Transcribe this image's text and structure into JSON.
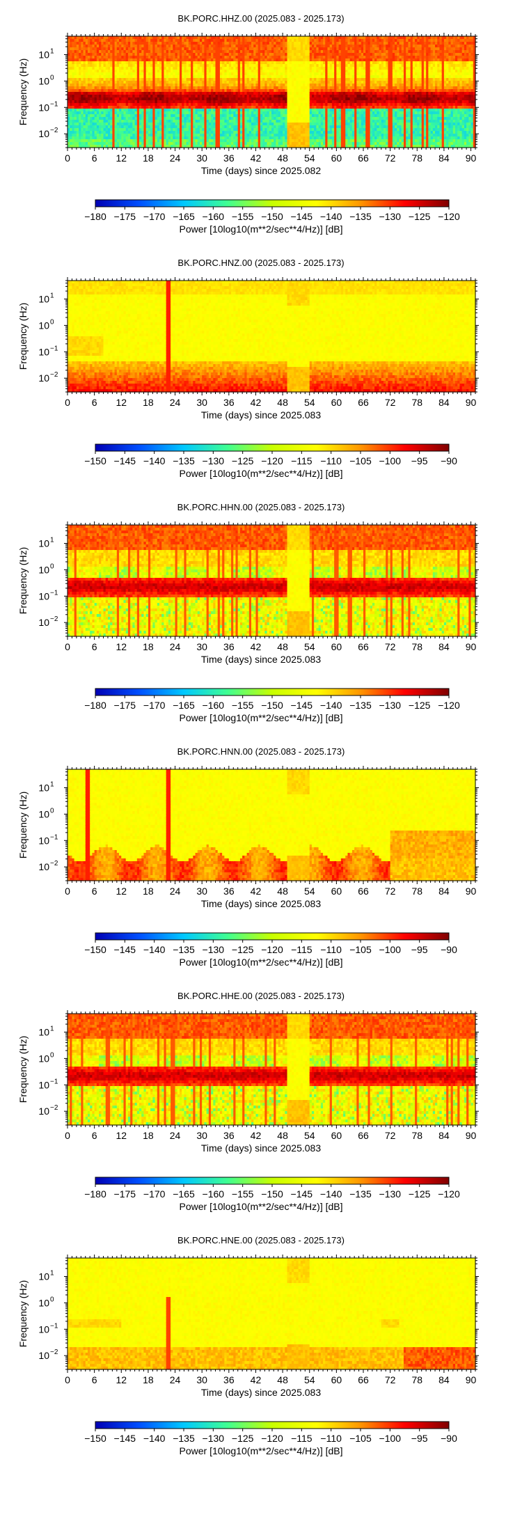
{
  "panels": [
    {
      "title": "BK.PORC.HHZ.00 (2025.083 - 2025.173)",
      "xlabel": "Time (days) since 2025.082",
      "cbar_ticks": [
        "−180",
        "−175",
        "−170",
        "−165",
        "−160",
        "−155",
        "−150",
        "−145",
        "−140",
        "−135",
        "−130",
        "−125",
        "−120"
      ],
      "style": "hh_vertical",
      "dead_band_days": [
        49,
        54
      ]
    },
    {
      "title": "BK.PORC.HNZ.00 (2025.083 - 2025.173)",
      "xlabel": "Time (days) since 2025.083",
      "cbar_ticks": [
        "−150",
        "−145",
        "−140",
        "−135",
        "−130",
        "−125",
        "−120",
        "−115",
        "−110",
        "−105",
        "−100",
        "−95",
        "−90"
      ],
      "style": "hn_vertical",
      "dead_band_days": [
        49,
        54
      ]
    },
    {
      "title": "BK.PORC.HHN.00 (2025.083 - 2025.173)",
      "xlabel": "Time (days) since 2025.083",
      "cbar_ticks": [
        "−180",
        "−175",
        "−170",
        "−165",
        "−160",
        "−155",
        "−150",
        "−145",
        "−140",
        "−135",
        "−130",
        "−125",
        "−120"
      ],
      "style": "hh_horizontal",
      "dead_band_days": [
        49,
        54
      ]
    },
    {
      "title": "BK.PORC.HNN.00 (2025.083 - 2025.173)",
      "xlabel": "Time (days) since 2025.083",
      "cbar_ticks": [
        "−150",
        "−145",
        "−140",
        "−135",
        "−130",
        "−125",
        "−120",
        "−115",
        "−110",
        "−105",
        "−100",
        "−95",
        "−90"
      ],
      "style": "hn_horizontal",
      "dead_band_days": [
        49,
        54
      ]
    },
    {
      "title": "BK.PORC.HHE.00 (2025.083 - 2025.173)",
      "xlabel": "Time (days) since 2025.083",
      "cbar_ticks": [
        "−180",
        "−175",
        "−170",
        "−165",
        "−160",
        "−155",
        "−150",
        "−145",
        "−140",
        "−135",
        "−130",
        "−125",
        "−120"
      ],
      "style": "hh_horizontal",
      "dead_band_days": [
        49,
        54
      ]
    },
    {
      "title": "BK.PORC.HNE.00 (2025.083 - 2025.173)",
      "xlabel": "Time (days) since 2025.083",
      "cbar_ticks": [
        "−150",
        "−145",
        "−140",
        "−135",
        "−130",
        "−125",
        "−120",
        "−115",
        "−110",
        "−105",
        "−100",
        "−95",
        "−90"
      ],
      "style": "hn_east",
      "dead_band_days": [
        49,
        54
      ]
    }
  ],
  "ylabel": "Frequency (Hz)",
  "ytick_labels": [
    {
      "base": "10",
      "exp": "1",
      "freq": 10
    },
    {
      "base": "10",
      "exp": "0",
      "freq": 1
    },
    {
      "base": "10",
      "exp": "−1",
      "freq": 0.1
    },
    {
      "base": "10",
      "exp": "−2",
      "freq": 0.01
    }
  ],
  "xticks": [
    "0",
    "6",
    "12",
    "18",
    "24",
    "30",
    "36",
    "42",
    "48",
    "54",
    "60",
    "66",
    "72",
    "78",
    "84",
    "90"
  ],
  "cbar_label": "Power [10log10(m**2/sec**4/Hz)] [dB]",
  "colormap": [
    "#0000b4",
    "#0050ff",
    "#00c8ff",
    "#40ff90",
    "#c8ff00",
    "#ffff00",
    "#ff9600",
    "#ff0000",
    "#800000"
  ],
  "chart_data": [
    {
      "type": "heatmap",
      "title": "BK.PORC.HHZ.00 (2025.083 - 2025.173)",
      "xlabel": "Time (days) since 2025.082",
      "ylabel": "Frequency (Hz)",
      "xlim": [
        0,
        91
      ],
      "ylim_hz": [
        0.003,
        50
      ],
      "yscale": "log",
      "clim": [
        -180,
        -120
      ],
      "colorbar_label": "Power [10log10(m**2/sec**4/Hz)] [dB]"
    },
    {
      "type": "heatmap",
      "title": "BK.PORC.HNZ.00 (2025.083 - 2025.173)",
      "xlabel": "Time (days) since 2025.083",
      "ylabel": "Frequency (Hz)",
      "xlim": [
        0,
        91
      ],
      "ylim_hz": [
        0.003,
        50
      ],
      "yscale": "log",
      "clim": [
        -150,
        -90
      ],
      "colorbar_label": "Power [10log10(m**2/sec**4/Hz)] [dB]"
    },
    {
      "type": "heatmap",
      "title": "BK.PORC.HHN.00 (2025.083 - 2025.173)",
      "xlabel": "Time (days) since 2025.083",
      "ylabel": "Frequency (Hz)",
      "xlim": [
        0,
        91
      ],
      "ylim_hz": [
        0.003,
        50
      ],
      "yscale": "log",
      "clim": [
        -180,
        -120
      ],
      "colorbar_label": "Power [10log10(m**2/sec**4/Hz)] [dB]"
    },
    {
      "type": "heatmap",
      "title": "BK.PORC.HNN.00 (2025.083 - 2025.173)",
      "xlabel": "Time (days) since 2025.083",
      "ylabel": "Frequency (Hz)",
      "xlim": [
        0,
        91
      ],
      "ylim_hz": [
        0.003,
        50
      ],
      "yscale": "log",
      "clim": [
        -150,
        -90
      ],
      "colorbar_label": "Power [10log10(m**2/sec**4/Hz)] [dB]"
    },
    {
      "type": "heatmap",
      "title": "BK.PORC.HHE.00 (2025.083 - 2025.173)",
      "xlabel": "Time (days) since 2025.083",
      "ylabel": "Frequency (Hz)",
      "xlim": [
        0,
        91
      ],
      "ylim_hz": [
        0.003,
        50
      ],
      "yscale": "log",
      "clim": [
        -180,
        -120
      ],
      "colorbar_label": "Power [10log10(m**2/sec**4/Hz)] [dB]"
    },
    {
      "type": "heatmap",
      "title": "BK.PORC.HNE.00 (2025.083 - 2025.173)",
      "xlabel": "Time (days) since 2025.083",
      "ylabel": "Frequency (Hz)",
      "xlim": [
        0,
        91
      ],
      "ylim_hz": [
        0.003,
        50
      ],
      "yscale": "log",
      "clim": [
        -150,
        -90
      ],
      "colorbar_label": "Power [10log10(m**2/sec**4/Hz)] [dB]"
    }
  ]
}
